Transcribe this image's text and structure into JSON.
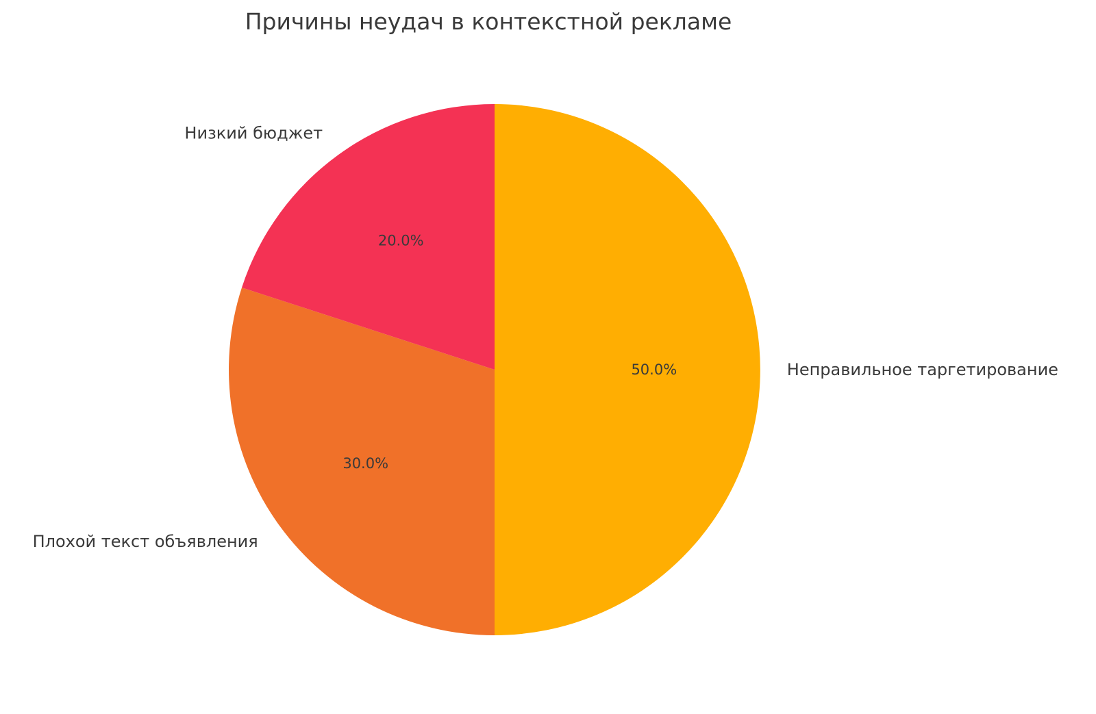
{
  "chart_data": {
    "type": "pie",
    "title": "Причины неудач в контекстной рекламе",
    "labels": [
      "Неправильное таргетирование",
      "Плохой текст объявления",
      "Низкий бюджет"
    ],
    "values": [
      50.0,
      30.0,
      20.0
    ],
    "percent_labels": [
      "50.0%",
      "30.0%",
      "20.0%"
    ],
    "colors": [
      "#FFAE02",
      "#F07129",
      "#F43254"
    ],
    "start_angle_deg": 90,
    "direction": "clockwise",
    "label_distance": 1.1,
    "pct_distance": 0.6,
    "text_color": "#3a3a3a",
    "background_color": "#ffffff",
    "legend": false,
    "grid": false
  }
}
